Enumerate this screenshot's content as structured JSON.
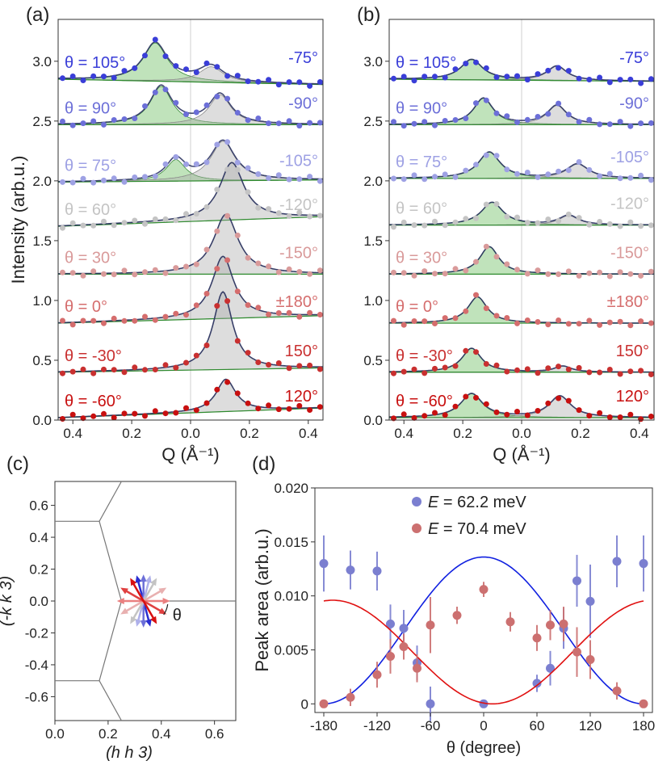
{
  "chart_data": [
    {
      "panel": "(a)",
      "type": "line",
      "xlabel": "Q (Å⁻¹)",
      "ylabel": "Intensity (arb.u.)",
      "xlim": [
        -0.45,
        0.45
      ],
      "ylim": [
        0.0,
        3.35
      ],
      "x_ticks": [
        -0.4,
        -0.2,
        0.0,
        0.2,
        0.4
      ],
      "x_tick_labels": [
        "0.4",
        "0.2",
        "0.0",
        "0.2",
        "0.4"
      ],
      "y_ticks": [
        0.0,
        0.5,
        1.0,
        1.5,
        2.0,
        2.5,
        3.0
      ],
      "y_tick_labels": [
        "0.0",
        "0.5",
        "1.0",
        "1.5",
        "2.0",
        "2.5",
        "3.0"
      ],
      "series": [
        {
          "name": "θ = 105°",
          "right_label": "-75°",
          "color": "#3a3ed8",
          "offset": 2.85,
          "bg_slope": -0.05,
          "peaks": [
            {
              "center": -0.12,
              "amp": 0.32,
              "width": 0.05,
              "fill": "green"
            },
            {
              "center": 0.07,
              "amp": 0.13,
              "width": 0.05,
              "fill": "gray"
            }
          ]
        },
        {
          "name": "θ = 90°",
          "right_label": "-90°",
          "color": "#6c6fd8",
          "offset": 2.47,
          "bg_slope": 0.0,
          "peaks": [
            {
              "center": -0.1,
              "amp": 0.32,
              "width": 0.045,
              "fill": "green"
            },
            {
              "center": 0.1,
              "amp": 0.25,
              "width": 0.045,
              "fill": "gray"
            }
          ]
        },
        {
          "name": "θ = 75°",
          "right_label": "-105°",
          "color": "#9ea1e4",
          "offset": 1.99,
          "bg_slope": 0.02,
          "peaks": [
            {
              "center": -0.05,
              "amp": 0.18,
              "width": 0.04,
              "fill": "green"
            },
            {
              "center": 0.11,
              "amp": 0.33,
              "width": 0.05,
              "fill": "gray"
            }
          ]
        },
        {
          "name": "θ = 60°",
          "right_label": "-120°",
          "color": "#c4c4c4",
          "offset": 1.62,
          "bg_slope": 0.09,
          "peaks": [
            {
              "center": 0.14,
              "amp": 0.48,
              "width": 0.05,
              "fill": "gray"
            }
          ]
        },
        {
          "name": "θ = 30°",
          "right_label": "-150°",
          "color": "#d99a9a",
          "offset": 1.22,
          "bg_slope": 0.0,
          "peaks": [
            {
              "center": 0.12,
              "amp": 0.5,
              "width": 0.05,
              "fill": "gray"
            }
          ]
        },
        {
          "name": "θ = 0°",
          "right_label": "±180°",
          "color": "#d56d6d",
          "offset": 0.81,
          "bg_slope": 0.07,
          "peaks": [
            {
              "center": 0.11,
              "amp": 0.52,
              "width": 0.045,
              "fill": "gray"
            }
          ]
        },
        {
          "name": "θ = -30°",
          "right_label": "150°",
          "color": "#c93030",
          "offset": 0.4,
          "bg_slope": 0.04,
          "peaks": [
            {
              "center": 0.11,
              "amp": 0.65,
              "width": 0.04,
              "fill": "gray"
            }
          ]
        },
        {
          "name": "θ = -60°",
          "right_label": "120°",
          "color": "#c81010",
          "offset": 0.02,
          "bg_slope": 0.09,
          "peaks": [
            {
              "center": 0.12,
              "amp": 0.27,
              "width": 0.04,
              "fill": "gray"
            }
          ]
        }
      ]
    },
    {
      "panel": "(b)",
      "type": "line",
      "xlabel": "Q (Å⁻¹)",
      "xlim": [
        -0.45,
        0.45
      ],
      "ylim": [
        0.0,
        3.35
      ],
      "x_ticks": [
        -0.4,
        -0.2,
        0.0,
        0.2,
        0.4
      ],
      "x_tick_labels": [
        "0.4",
        "0.2",
        "0.0",
        "0.2",
        "0.4"
      ],
      "y_ticks": [
        0.0,
        0.5,
        1.0,
        1.5,
        2.0,
        2.5,
        3.0
      ],
      "y_tick_labels": [
        "0.0",
        "0.5",
        "1.0",
        "1.5",
        "2.0",
        "2.5",
        "3.0"
      ],
      "series": [
        {
          "name": "θ = 105°",
          "right_label": "-75°",
          "color": "#3a3ed8",
          "offset": 2.85,
          "bg_slope": -0.02,
          "peaks": [
            {
              "center": -0.17,
              "amp": 0.17,
              "width": 0.045,
              "fill": "green"
            },
            {
              "center": 0.12,
              "amp": 0.12,
              "width": 0.04,
              "fill": "gray"
            }
          ]
        },
        {
          "name": "θ = 90°",
          "right_label": "-90°",
          "color": "#6c6fd8",
          "offset": 2.47,
          "bg_slope": 0.0,
          "peaks": [
            {
              "center": -0.13,
              "amp": 0.22,
              "width": 0.04,
              "fill": "green"
            },
            {
              "center": 0.12,
              "amp": 0.16,
              "width": 0.04,
              "fill": "gray"
            }
          ]
        },
        {
          "name": "θ = 75°",
          "right_label": "-105°",
          "color": "#9ea1e4",
          "offset": 2.02,
          "bg_slope": 0.0,
          "peaks": [
            {
              "center": -0.11,
              "amp": 0.22,
              "width": 0.045,
              "fill": "green"
            },
            {
              "center": 0.19,
              "amp": 0.12,
              "width": 0.045,
              "fill": "gray"
            }
          ]
        },
        {
          "name": "θ = 60°",
          "right_label": "-120°",
          "color": "#c4c4c4",
          "offset": 1.63,
          "bg_slope": 0.0,
          "peaks": [
            {
              "center": -0.1,
              "amp": 0.19,
              "width": 0.045,
              "fill": "green"
            },
            {
              "center": 0.16,
              "amp": 0.08,
              "width": 0.04,
              "fill": "gray"
            }
          ]
        },
        {
          "name": "θ = 30°",
          "right_label": "-150°",
          "color": "#d99a9a",
          "offset": 1.22,
          "bg_slope": 0.0,
          "peaks": [
            {
              "center": -0.11,
              "amp": 0.23,
              "width": 0.04,
              "fill": "green"
            }
          ]
        },
        {
          "name": "θ = 0°",
          "right_label": "±180°",
          "color": "#d56d6d",
          "offset": 0.81,
          "bg_slope": 0.0,
          "peaks": [
            {
              "center": -0.15,
              "amp": 0.22,
              "width": 0.04,
              "fill": "green"
            }
          ]
        },
        {
          "name": "θ = -30°",
          "right_label": "150°",
          "color": "#c93030",
          "offset": 0.4,
          "bg_slope": 0.0,
          "peaks": [
            {
              "center": -0.17,
              "amp": 0.2,
              "width": 0.04,
              "fill": "green"
            },
            {
              "center": 0.14,
              "amp": 0.05,
              "width": 0.035,
              "fill": "gray"
            }
          ]
        },
        {
          "name": "θ = -60°",
          "right_label": "120°",
          "color": "#c81010",
          "offset": 0.02,
          "bg_slope": 0.0,
          "peaks": [
            {
              "center": -0.17,
              "amp": 0.2,
              "width": 0.045,
              "fill": "green"
            },
            {
              "center": 0.13,
              "amp": 0.18,
              "width": 0.045,
              "fill": "gray"
            }
          ]
        }
      ]
    },
    {
      "panel": "(c)",
      "type": "scatter",
      "xlabel": "(h h 3)",
      "ylabel": "(-k k 3)",
      "xlim": [
        0.0,
        0.68
      ],
      "ylim": [
        -0.75,
        0.75
      ],
      "x_ticks": [
        0.0,
        0.2,
        0.4,
        0.6
      ],
      "x_tick_labels": [
        "0.0",
        "0.2",
        "0.4",
        "0.6"
      ],
      "y_ticks": [
        -0.6,
        -0.4,
        -0.2,
        0.0,
        0.2,
        0.4,
        0.6
      ],
      "y_tick_labels": [
        "-0.6",
        "-0.4",
        "-0.2",
        "0.0",
        "0.2",
        "0.4",
        "0.6"
      ],
      "zone_boundaries": [
        [
          [
            0.0,
            0.5
          ],
          [
            0.167,
            0.5
          ],
          [
            0.25,
            0.0
          ],
          [
            0.167,
            -0.5
          ],
          [
            0.0,
            -0.5
          ]
        ],
        [
          [
            0.167,
            0.5
          ],
          [
            0.25,
            0.75
          ]
        ],
        [
          [
            0.167,
            -0.5
          ],
          [
            0.25,
            -0.75
          ]
        ],
        [
          [
            0.25,
            0.0
          ],
          [
            0.68,
            0.0
          ]
        ]
      ],
      "arrow_origin": [
        0.333,
        0.0
      ],
      "arrow_length": 0.1,
      "angle_label": "θ",
      "arrows": [
        {
          "theta": 105,
          "color": "#2a2ed0"
        },
        {
          "theta": 90,
          "color": "#6c6fd8"
        },
        {
          "theta": 75,
          "color": "#aeb0ea"
        },
        {
          "theta": 60,
          "color": "#c4c4c4"
        },
        {
          "theta": 30,
          "color": "#e8b0b0"
        },
        {
          "theta": 0,
          "color": "#ea8080"
        },
        {
          "theta": -30,
          "color": "#e04040"
        },
        {
          "theta": -60,
          "color": "#d81010"
        }
      ]
    },
    {
      "panel": "(d)",
      "type": "scatter",
      "xlabel": "θ (degree)",
      "ylabel": "Peak area (arb.u.)",
      "xlim": [
        -190,
        190
      ],
      "ylim": [
        -0.0008,
        0.02
      ],
      "x_ticks": [
        -180,
        -120,
        -60,
        0,
        60,
        120,
        180
      ],
      "x_tick_labels": [
        "-180",
        "-120",
        "-60",
        "0",
        "60",
        "120",
        "180"
      ],
      "y_ticks": [
        0.0,
        0.005,
        0.01,
        0.015,
        0.02
      ],
      "y_tick_labels": [
        "0",
        "0.005",
        "0.010",
        "0.015",
        "0.020"
      ],
      "legend_position": "top-center",
      "series": [
        {
          "name": "E = 62.2 meV",
          "legend_var": "E",
          "legend_rest": " = 62.2 meV",
          "color": "#7b7fd0",
          "fit_color": "#1020e0",
          "fit": {
            "mean": 0.0068,
            "amp": 0.0068,
            "phase": 0.0
          },
          "x": [
            -180,
            -150,
            -120,
            -105,
            -90,
            -75,
            -60,
            0,
            60,
            75,
            90,
            105,
            120,
            150,
            180
          ],
          "y": [
            0.013,
            0.0124,
            0.0123,
            0.0074,
            0.007,
            0.0038,
            0.0,
            0.0,
            0.0019,
            0.0033,
            0.007,
            0.0114,
            0.0095,
            0.0132,
            0.013
          ],
          "err": [
            0.0026,
            0.0018,
            0.0018,
            0.0018,
            0.0017,
            0.0016,
            0.0016,
            0.0,
            0.0008,
            0.0016,
            0.0019,
            0.0024,
            0.0034,
            0.0024,
            0.0026
          ]
        },
        {
          "name": "E = 70.4 meV",
          "legend_var": "E",
          "legend_rest": " = 70.4 meV",
          "color": "#cc7070",
          "fit_color": "#e01010",
          "fit": {
            "mean": 0.0048,
            "amp": 0.0048,
            "phase": 10.0
          },
          "x": [
            -180,
            -150,
            -120,
            -105,
            -90,
            -75,
            -60,
            -30,
            0,
            30,
            60,
            75,
            90,
            105,
            120,
            150,
            180
          ],
          "y": [
            0.0,
            0.0006,
            0.0027,
            0.0044,
            0.0053,
            0.0033,
            0.0073,
            0.0082,
            0.0106,
            0.0076,
            0.0061,
            0.0073,
            0.0074,
            0.0048,
            0.0041,
            0.0012,
            0.0
          ],
          "err": [
            0.0,
            0.0008,
            0.0012,
            0.0016,
            0.0012,
            0.0013,
            0.0026,
            0.0008,
            0.0007,
            0.0009,
            0.0012,
            0.0014,
            0.0016,
            0.0023,
            0.0018,
            0.0008,
            0.0
          ]
        }
      ]
    }
  ]
}
